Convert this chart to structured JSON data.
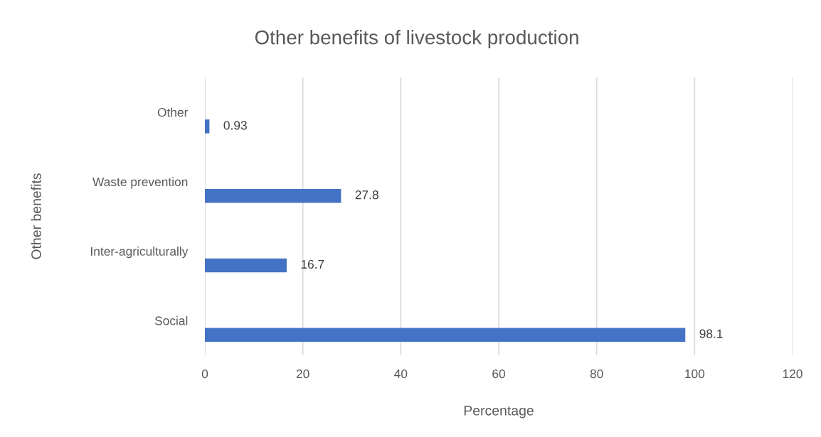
{
  "chart_data": {
    "type": "bar",
    "orientation": "horizontal",
    "title": "Other benefits of livestock production",
    "xlabel": "Percentage",
    "ylabel": "Other benefits",
    "categories": [
      "Other",
      "Waste prevention",
      "Inter-agriculturally",
      "Social"
    ],
    "values": [
      0.93,
      27.8,
      16.7,
      98.1
    ],
    "color": "#4472c4",
    "xlim": [
      0,
      120
    ],
    "xticks": [
      0,
      20,
      40,
      60,
      80,
      100,
      120
    ],
    "grid": "x",
    "data_labels": true
  }
}
